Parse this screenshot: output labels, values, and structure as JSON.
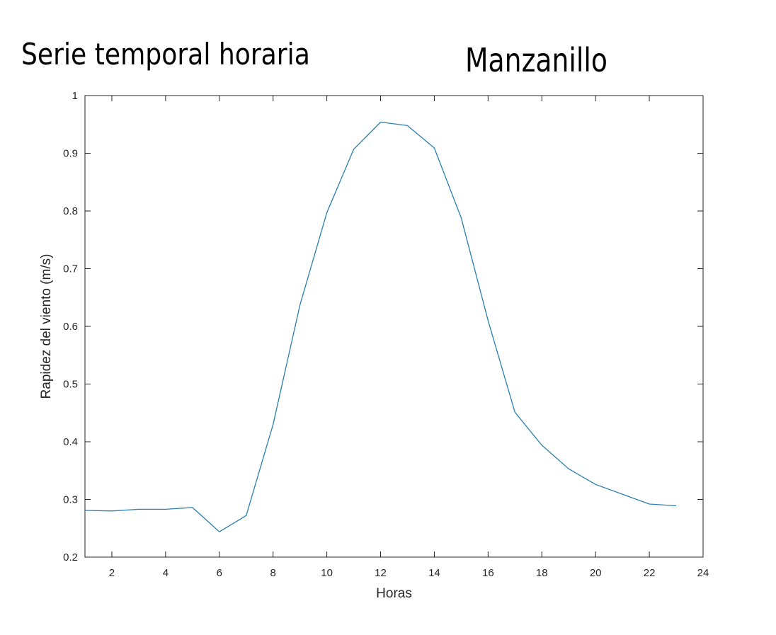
{
  "title_text": "Serie temporal horaria",
  "subtitle_text": "Manzanillo",
  "chart_data": {
    "type": "line",
    "xlabel": "Horas",
    "ylabel": "Rapidez del viento (m/s)",
    "xlim": [
      1,
      24
    ],
    "ylim": [
      0.2,
      1
    ],
    "xticks": [
      2,
      4,
      6,
      8,
      10,
      12,
      14,
      16,
      18,
      20,
      22,
      24
    ],
    "yticks": [
      0.2,
      0.3,
      0.4,
      0.5,
      0.6,
      0.7,
      0.8,
      0.9,
      1
    ],
    "ytick_labels": [
      "0.2",
      "0.3",
      "0.4",
      "0.5",
      "0.6",
      "0.7",
      "0.8",
      "0.9",
      "1"
    ],
    "grid": false,
    "series": [
      {
        "color": "#2a7fae",
        "x": [
          1,
          2,
          3,
          4,
          5,
          6,
          7,
          8,
          9,
          10,
          11,
          12,
          13,
          14,
          15,
          16,
          17,
          18,
          19,
          20,
          21,
          22,
          23
        ],
        "y": [
          0.281,
          0.28,
          0.283,
          0.283,
          0.286,
          0.244,
          0.272,
          0.43,
          0.637,
          0.797,
          0.907,
          0.954,
          0.948,
          0.909,
          0.788,
          0.61,
          0.451,
          0.394,
          0.353,
          0.326,
          0.309,
          0.292,
          0.289
        ]
      }
    ]
  }
}
